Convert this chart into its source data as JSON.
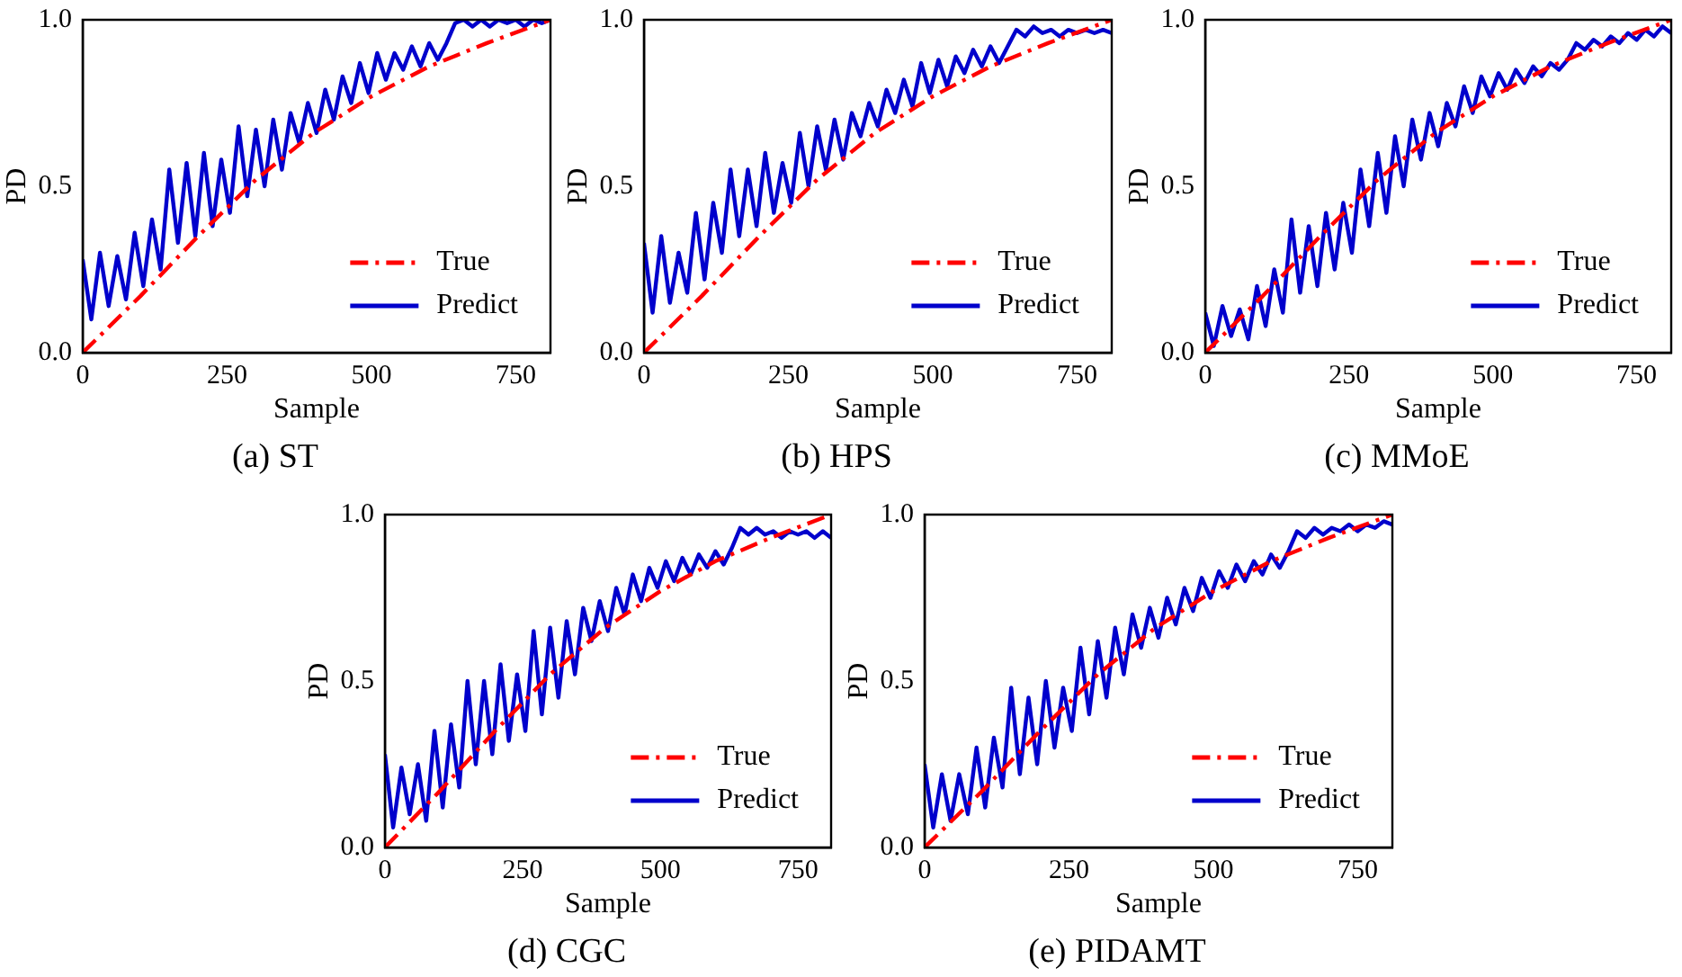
{
  "chart_data": [
    {
      "type": "line",
      "title": "(a) ST",
      "xlabel": "Sample",
      "ylabel": "PD",
      "xlim": [
        0,
        810
      ],
      "xticks": [
        0,
        250,
        500,
        750
      ],
      "ylim": [
        0,
        1
      ],
      "yticks": [
        {
          "value": 0,
          "label": "0.0"
        },
        {
          "value": 0.5,
          "label": "0.5"
        },
        {
          "value": 1,
          "label": "1.0"
        }
      ],
      "grid": false,
      "legend": "bottom right",
      "marker": "none",
      "x": [
        0,
        15,
        30,
        45,
        60,
        75,
        90,
        105,
        120,
        135,
        150,
        165,
        180,
        195,
        210,
        225,
        240,
        255,
        270,
        285,
        300,
        315,
        330,
        345,
        360,
        375,
        390,
        405,
        420,
        435,
        450,
        465,
        480,
        495,
        510,
        525,
        540,
        555,
        570,
        585,
        600,
        615,
        630,
        645,
        660,
        675,
        690,
        705,
        720,
        735,
        750,
        765,
        780,
        795,
        810
      ],
      "series": [
        {
          "name": "True",
          "color": "#ff0000",
          "line_style": "dashed",
          "x": [
            0,
            100,
            200,
            300,
            400,
            500,
            600,
            700,
            810
          ],
          "values": [
            0,
            0.17,
            0.35,
            0.52,
            0.66,
            0.77,
            0.86,
            0.93,
            1.0
          ]
        },
        {
          "name": "Predict",
          "color": "#0000cc",
          "line_style": "solid",
          "values": [
            0.28,
            0.1,
            0.3,
            0.14,
            0.29,
            0.16,
            0.36,
            0.2,
            0.4,
            0.25,
            0.55,
            0.33,
            0.57,
            0.35,
            0.6,
            0.38,
            0.58,
            0.42,
            0.68,
            0.47,
            0.67,
            0.5,
            0.7,
            0.55,
            0.72,
            0.63,
            0.75,
            0.66,
            0.79,
            0.7,
            0.83,
            0.75,
            0.87,
            0.78,
            0.9,
            0.82,
            0.9,
            0.85,
            0.92,
            0.86,
            0.93,
            0.88,
            0.93,
            0.99,
            1.0,
            0.98,
            1.0,
            0.98,
            1.0,
            0.99,
            1.0,
            0.98,
            1.0,
            0.99,
            1.0
          ]
        }
      ]
    },
    {
      "type": "line",
      "title": "(b) HPS",
      "xlabel": "Sample",
      "ylabel": "PD",
      "xlim": [
        0,
        810
      ],
      "xticks": [
        0,
        250,
        500,
        750
      ],
      "ylim": [
        0,
        1
      ],
      "yticks": [
        {
          "value": 0,
          "label": "0.0"
        },
        {
          "value": 0.5,
          "label": "0.5"
        },
        {
          "value": 1,
          "label": "1.0"
        }
      ],
      "grid": false,
      "legend": "bottom right",
      "marker": "none",
      "x": [
        0,
        15,
        30,
        45,
        60,
        75,
        90,
        105,
        120,
        135,
        150,
        165,
        180,
        195,
        210,
        225,
        240,
        255,
        270,
        285,
        300,
        315,
        330,
        345,
        360,
        375,
        390,
        405,
        420,
        435,
        450,
        465,
        480,
        495,
        510,
        525,
        540,
        555,
        570,
        585,
        600,
        615,
        630,
        645,
        660,
        675,
        690,
        705,
        720,
        735,
        750,
        765,
        780,
        795,
        810
      ],
      "series": [
        {
          "name": "True",
          "color": "#ff0000",
          "line_style": "dashed",
          "x": [
            0,
            100,
            200,
            300,
            400,
            500,
            600,
            700,
            810
          ],
          "values": [
            0,
            0.17,
            0.35,
            0.52,
            0.66,
            0.77,
            0.86,
            0.93,
            1.0
          ]
        },
        {
          "name": "Predict",
          "color": "#0000cc",
          "line_style": "solid",
          "values": [
            0.33,
            0.12,
            0.35,
            0.15,
            0.3,
            0.18,
            0.42,
            0.22,
            0.45,
            0.3,
            0.55,
            0.35,
            0.55,
            0.38,
            0.6,
            0.42,
            0.57,
            0.45,
            0.66,
            0.5,
            0.68,
            0.55,
            0.7,
            0.58,
            0.72,
            0.65,
            0.75,
            0.68,
            0.79,
            0.72,
            0.82,
            0.74,
            0.87,
            0.78,
            0.88,
            0.8,
            0.89,
            0.84,
            0.91,
            0.86,
            0.92,
            0.87,
            0.92,
            0.97,
            0.95,
            0.98,
            0.96,
            0.97,
            0.95,
            0.97,
            0.96,
            0.97,
            0.96,
            0.97,
            0.96
          ]
        }
      ]
    },
    {
      "type": "line",
      "title": "(c) MMoE",
      "xlabel": "Sample",
      "ylabel": "PD",
      "xlim": [
        0,
        810
      ],
      "xticks": [
        0,
        250,
        500,
        750
      ],
      "ylim": [
        0,
        1
      ],
      "yticks": [
        {
          "value": 0,
          "label": "0.0"
        },
        {
          "value": 0.5,
          "label": "0.5"
        },
        {
          "value": 1,
          "label": "1.0"
        }
      ],
      "grid": false,
      "legend": "bottom right",
      "marker": "none",
      "x": [
        0,
        15,
        30,
        45,
        60,
        75,
        90,
        105,
        120,
        135,
        150,
        165,
        180,
        195,
        210,
        225,
        240,
        255,
        270,
        285,
        300,
        315,
        330,
        345,
        360,
        375,
        390,
        405,
        420,
        435,
        450,
        465,
        480,
        495,
        510,
        525,
        540,
        555,
        570,
        585,
        600,
        615,
        630,
        645,
        660,
        675,
        690,
        705,
        720,
        735,
        750,
        765,
        780,
        795,
        810
      ],
      "series": [
        {
          "name": "True",
          "color": "#ff0000",
          "line_style": "dashed",
          "x": [
            0,
            100,
            200,
            300,
            400,
            500,
            600,
            700,
            810
          ],
          "values": [
            0,
            0.17,
            0.35,
            0.52,
            0.66,
            0.77,
            0.86,
            0.93,
            1.0
          ]
        },
        {
          "name": "Predict",
          "color": "#0000cc",
          "line_style": "solid",
          "values": [
            0.12,
            0.02,
            0.14,
            0.05,
            0.13,
            0.04,
            0.2,
            0.08,
            0.25,
            0.12,
            0.4,
            0.18,
            0.38,
            0.2,
            0.42,
            0.25,
            0.45,
            0.3,
            0.55,
            0.38,
            0.6,
            0.42,
            0.65,
            0.5,
            0.7,
            0.58,
            0.72,
            0.62,
            0.75,
            0.68,
            0.8,
            0.72,
            0.83,
            0.77,
            0.84,
            0.79,
            0.85,
            0.81,
            0.86,
            0.83,
            0.87,
            0.85,
            0.88,
            0.93,
            0.91,
            0.94,
            0.92,
            0.95,
            0.93,
            0.96,
            0.94,
            0.97,
            0.95,
            0.98,
            0.96
          ]
        }
      ]
    },
    {
      "type": "line",
      "title": "(d) CGC",
      "xlabel": "Sample",
      "ylabel": "PD",
      "xlim": [
        0,
        810
      ],
      "xticks": [
        0,
        250,
        500,
        750
      ],
      "ylim": [
        0,
        1
      ],
      "yticks": [
        {
          "value": 0,
          "label": "0.0"
        },
        {
          "value": 0.5,
          "label": "0.5"
        },
        {
          "value": 1,
          "label": "1.0"
        }
      ],
      "grid": false,
      "legend": "bottom right",
      "marker": "none",
      "x": [
        0,
        15,
        30,
        45,
        60,
        75,
        90,
        105,
        120,
        135,
        150,
        165,
        180,
        195,
        210,
        225,
        240,
        255,
        270,
        285,
        300,
        315,
        330,
        345,
        360,
        375,
        390,
        405,
        420,
        435,
        450,
        465,
        480,
        495,
        510,
        525,
        540,
        555,
        570,
        585,
        600,
        615,
        630,
        645,
        660,
        675,
        690,
        705,
        720,
        735,
        750,
        765,
        780,
        795,
        810
      ],
      "series": [
        {
          "name": "True",
          "color": "#ff0000",
          "line_style": "dashed",
          "x": [
            0,
            100,
            200,
            300,
            400,
            500,
            600,
            700,
            810
          ],
          "values": [
            0,
            0.17,
            0.35,
            0.52,
            0.66,
            0.77,
            0.86,
            0.93,
            1.0
          ]
        },
        {
          "name": "Predict",
          "color": "#0000cc",
          "line_style": "solid",
          "values": [
            0.28,
            0.06,
            0.24,
            0.1,
            0.25,
            0.08,
            0.35,
            0.12,
            0.37,
            0.18,
            0.5,
            0.25,
            0.5,
            0.28,
            0.55,
            0.32,
            0.52,
            0.35,
            0.65,
            0.4,
            0.66,
            0.45,
            0.68,
            0.52,
            0.72,
            0.62,
            0.74,
            0.65,
            0.78,
            0.7,
            0.82,
            0.74,
            0.84,
            0.78,
            0.86,
            0.8,
            0.87,
            0.82,
            0.88,
            0.84,
            0.89,
            0.85,
            0.9,
            0.96,
            0.94,
            0.96,
            0.94,
            0.95,
            0.93,
            0.95,
            0.94,
            0.95,
            0.93,
            0.95,
            0.93
          ]
        }
      ]
    },
    {
      "type": "line",
      "title": "(e) PIDAMT",
      "xlabel": "Sample",
      "ylabel": "PD",
      "xlim": [
        0,
        810
      ],
      "xticks": [
        0,
        250,
        500,
        750
      ],
      "ylim": [
        0,
        1
      ],
      "yticks": [
        {
          "value": 0,
          "label": "0.0"
        },
        {
          "value": 0.5,
          "label": "0.5"
        },
        {
          "value": 1,
          "label": "1.0"
        }
      ],
      "grid": false,
      "legend": "bottom right",
      "marker": "none",
      "x": [
        0,
        15,
        30,
        45,
        60,
        75,
        90,
        105,
        120,
        135,
        150,
        165,
        180,
        195,
        210,
        225,
        240,
        255,
        270,
        285,
        300,
        315,
        330,
        345,
        360,
        375,
        390,
        405,
        420,
        435,
        450,
        465,
        480,
        495,
        510,
        525,
        540,
        555,
        570,
        585,
        600,
        615,
        630,
        645,
        660,
        675,
        690,
        705,
        720,
        735,
        750,
        765,
        780,
        795,
        810
      ],
      "series": [
        {
          "name": "True",
          "color": "#ff0000",
          "line_style": "dashed",
          "x": [
            0,
            100,
            200,
            300,
            400,
            500,
            600,
            700,
            810
          ],
          "values": [
            0,
            0.17,
            0.35,
            0.52,
            0.66,
            0.77,
            0.86,
            0.93,
            1.0
          ]
        },
        {
          "name": "Predict",
          "color": "#0000cc",
          "line_style": "solid",
          "values": [
            0.25,
            0.06,
            0.22,
            0.08,
            0.22,
            0.1,
            0.3,
            0.12,
            0.33,
            0.18,
            0.48,
            0.22,
            0.45,
            0.25,
            0.5,
            0.3,
            0.48,
            0.35,
            0.6,
            0.4,
            0.62,
            0.45,
            0.66,
            0.52,
            0.7,
            0.6,
            0.72,
            0.63,
            0.75,
            0.67,
            0.78,
            0.71,
            0.81,
            0.75,
            0.83,
            0.78,
            0.85,
            0.8,
            0.86,
            0.82,
            0.88,
            0.84,
            0.89,
            0.95,
            0.93,
            0.96,
            0.94,
            0.96,
            0.95,
            0.97,
            0.95,
            0.97,
            0.96,
            0.98,
            0.97
          ]
        }
      ]
    }
  ]
}
